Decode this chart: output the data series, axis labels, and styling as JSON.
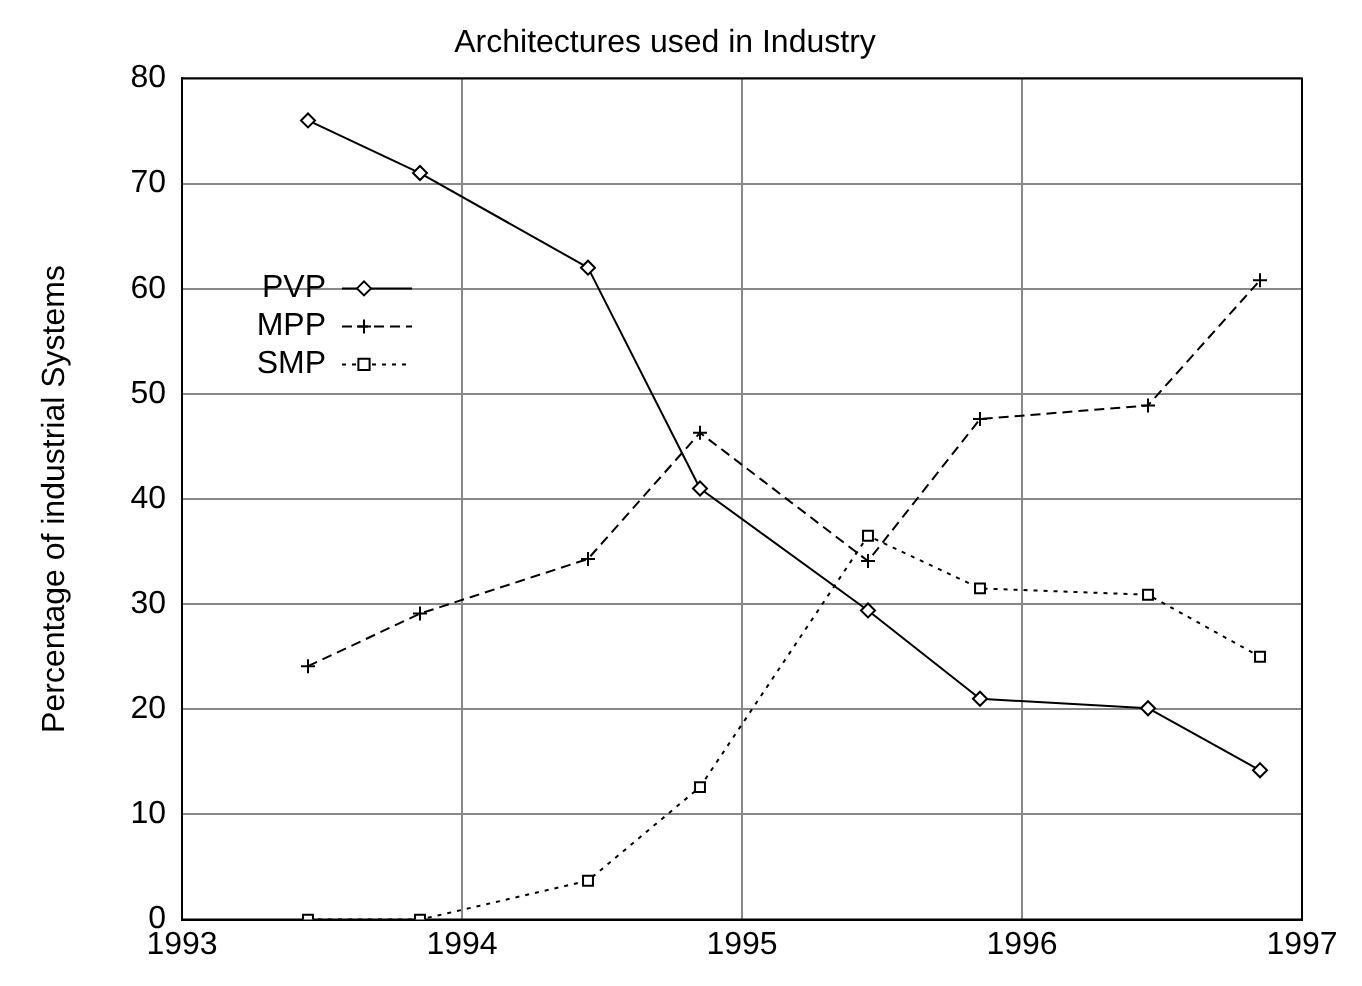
{
  "chart_data": {
    "type": "line",
    "title": "Architectures used in Industry",
    "ylabel": "Percentage of industrial Systems",
    "x": [
      1993.45,
      1993.85,
      1994.45,
      1994.85,
      1995.45,
      1995.85,
      1996.45,
      1996.85
    ],
    "series": [
      {
        "name": "PVP",
        "color": "#000000",
        "marker": "diamond",
        "line_style": "solid",
        "values": [
          76,
          71,
          62,
          41,
          29.4,
          21,
          20.1,
          14.2
        ]
      },
      {
        "name": "MPP",
        "color": "#000000",
        "marker": "cross",
        "line_style": "dashed",
        "values": [
          24.1,
          29.1,
          34.3,
          46.3,
          34.1,
          47.6,
          48.9,
          60.8
        ]
      },
      {
        "name": "SMP",
        "color": "#000000",
        "marker": "square",
        "line_style": "dotted",
        "values": [
          0,
          0,
          3.7,
          12.6,
          36.5,
          31.5,
          30.9,
          25
        ]
      }
    ],
    "xlim": [
      1993,
      1997
    ],
    "xticks": [
      1993,
      1994,
      1995,
      1996,
      1997
    ],
    "ylim": [
      0,
      80
    ],
    "yticks": [
      0,
      10,
      20,
      30,
      40,
      50,
      60,
      70,
      80
    ],
    "grid": true,
    "legend": "top left"
  }
}
